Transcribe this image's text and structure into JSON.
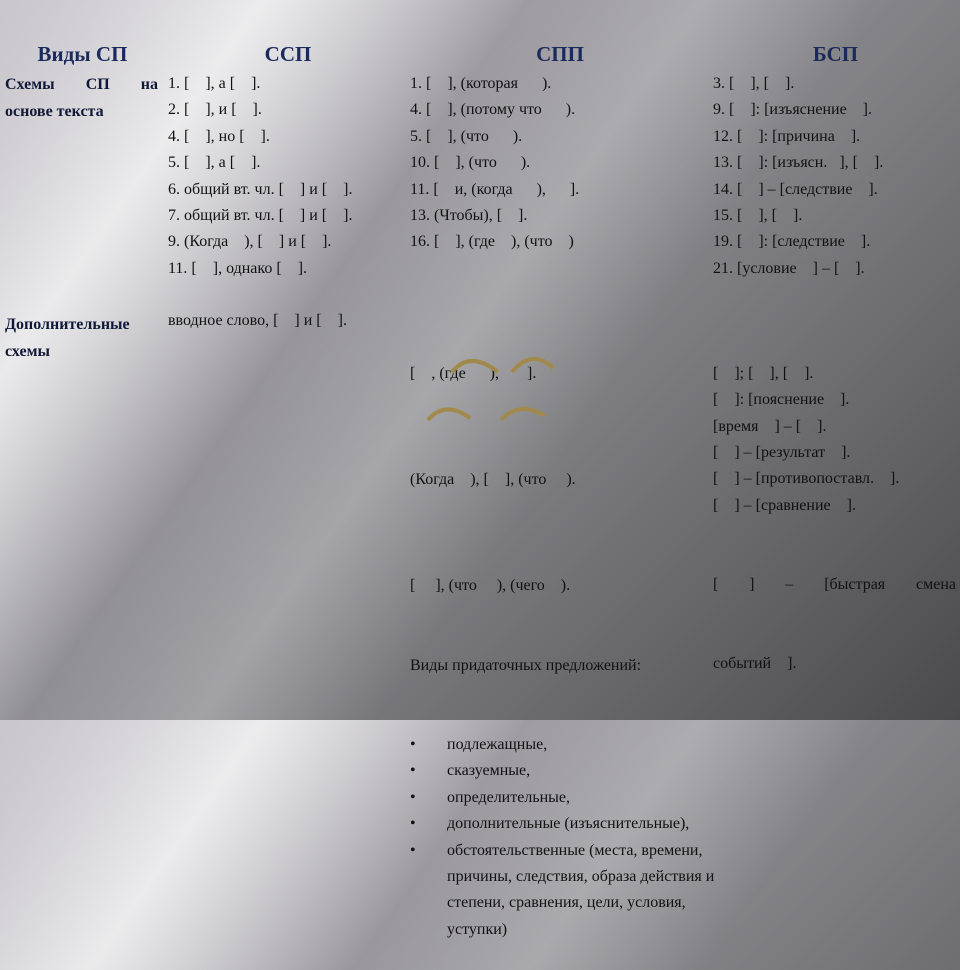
{
  "headers": {
    "kinds": "Виды СП",
    "ssp": "ССП",
    "spp": "СПП",
    "bsp": "БСП"
  },
  "rows": [
    {
      "label_line1": [
        "Схемы",
        "СП",
        "на"
      ],
      "label_line2": "основе текста",
      "ssp": [
        "1. [    ], а [    ].",
        "2. [    ], и [    ].",
        "4. [    ], но [    ].",
        "5. [    ], а [    ].",
        "6. общий вт. чл. [    ] и [    ].",
        "7. общий вт. чл. [    ] и [    ].",
        "9. (Когда    ), [    ] и [    ].",
        "11. [    ], однако [    ]."
      ],
      "spp": [
        "1. [    ], (которая      ).",
        "4. [    ], (потому что      ).",
        "5. [    ], (что      ).",
        "10. [    ], (что      ).",
        "11. [    и, (когда      ),      ].",
        "13. (Чтобы), [    ].",
        "16. [    ], (где    ), (что    )"
      ],
      "bsp": [
        "3. [    ], [    ].",
        "9. [    ]: [изъяснение    ].",
        "12. [    ]: [причина    ].",
        "13. [    ]: [изъясн.   ], [    ].",
        "14. [    ] – [следствие    ].",
        "15. [    ], [    ].",
        "19. [    ]: [следствие    ].",
        "21. [условие    ] – [    ]."
      ]
    },
    {
      "label_line1": "Дополнительные",
      "label_line2": "схемы",
      "ssp": "вводное слово, [    ] и [    ].",
      "spp": {
        "schemes": [
          "[    , (где      ),       ].",
          "(Когда    ), [    ], (что     ).",
          "[     ], (что     ), (чего    )."
        ],
        "subtitle": "Виды придаточных предложений:",
        "bullets": [
          "подлежащные,",
          "сказуемные,",
          "определительные,",
          "дополнительные (изъяснительные),",
          "обстоятельственные (места, времени, причины, следствия, образа действия и степени, сравнения, цели, условия, уступки)"
        ]
      },
      "bsp": [
        "[    ]; [    ], [    ].",
        "[    ]: [пояснение    ].",
        "[время    ] – [    ].",
        "[    ] – [результат    ].",
        "[    ] – [противопоставл.    ].",
        "[    ] – [сравнение    ]."
      ],
      "bsp_last": {
        "line1": [
          "[",
          "]",
          "–",
          "[быстрая",
          "смена"
        ],
        "line2": "событий    ]."
      }
    }
  ],
  "colors": {
    "header": "#1b2a5c",
    "arc": "#a0894a"
  }
}
